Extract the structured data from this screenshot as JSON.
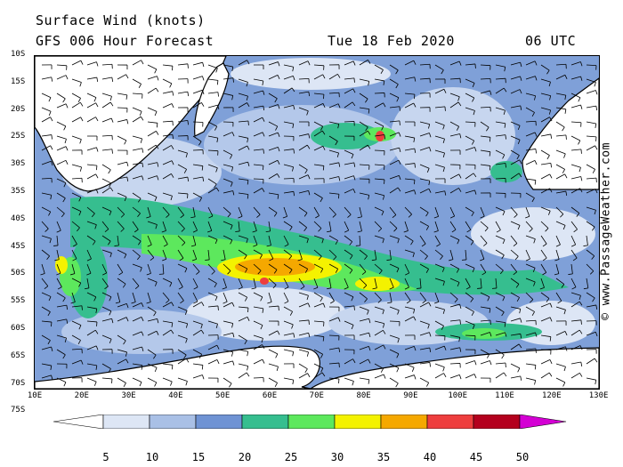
{
  "title": {
    "line1": "Surface Wind (knots)",
    "line2": "GFS 006 Hour Forecast",
    "date": "Tue 18 Feb 2020",
    "time": "06 UTC"
  },
  "credit": "© www.PassageWeather.com",
  "lat_labels": [
    "10S",
    "15S",
    "20S",
    "25S",
    "30S",
    "35S",
    "40S",
    "45S",
    "50S",
    "55S",
    "60S",
    "65S",
    "70S",
    "75S"
  ],
  "lon_labels": [
    "10E",
    "20E",
    "30E",
    "40E",
    "50E",
    "60E",
    "70E",
    "80E",
    "90E",
    "100E",
    "110E",
    "120E",
    "130E"
  ],
  "colorbar": {
    "labels": [
      "5",
      "10",
      "15",
      "20",
      "25",
      "30",
      "35",
      "40",
      "45",
      "50"
    ],
    "colors": [
      "#ffffff",
      "#dde6f5",
      "#a9c0e6",
      "#6f93d4",
      "#36be8f",
      "#5de85d",
      "#f4f200",
      "#f5a800",
      "#ee3e3e",
      "#b4001e",
      "#d400d4"
    ]
  },
  "land_colors": {
    "land": "#ffffff",
    "coast": "#000000"
  }
}
